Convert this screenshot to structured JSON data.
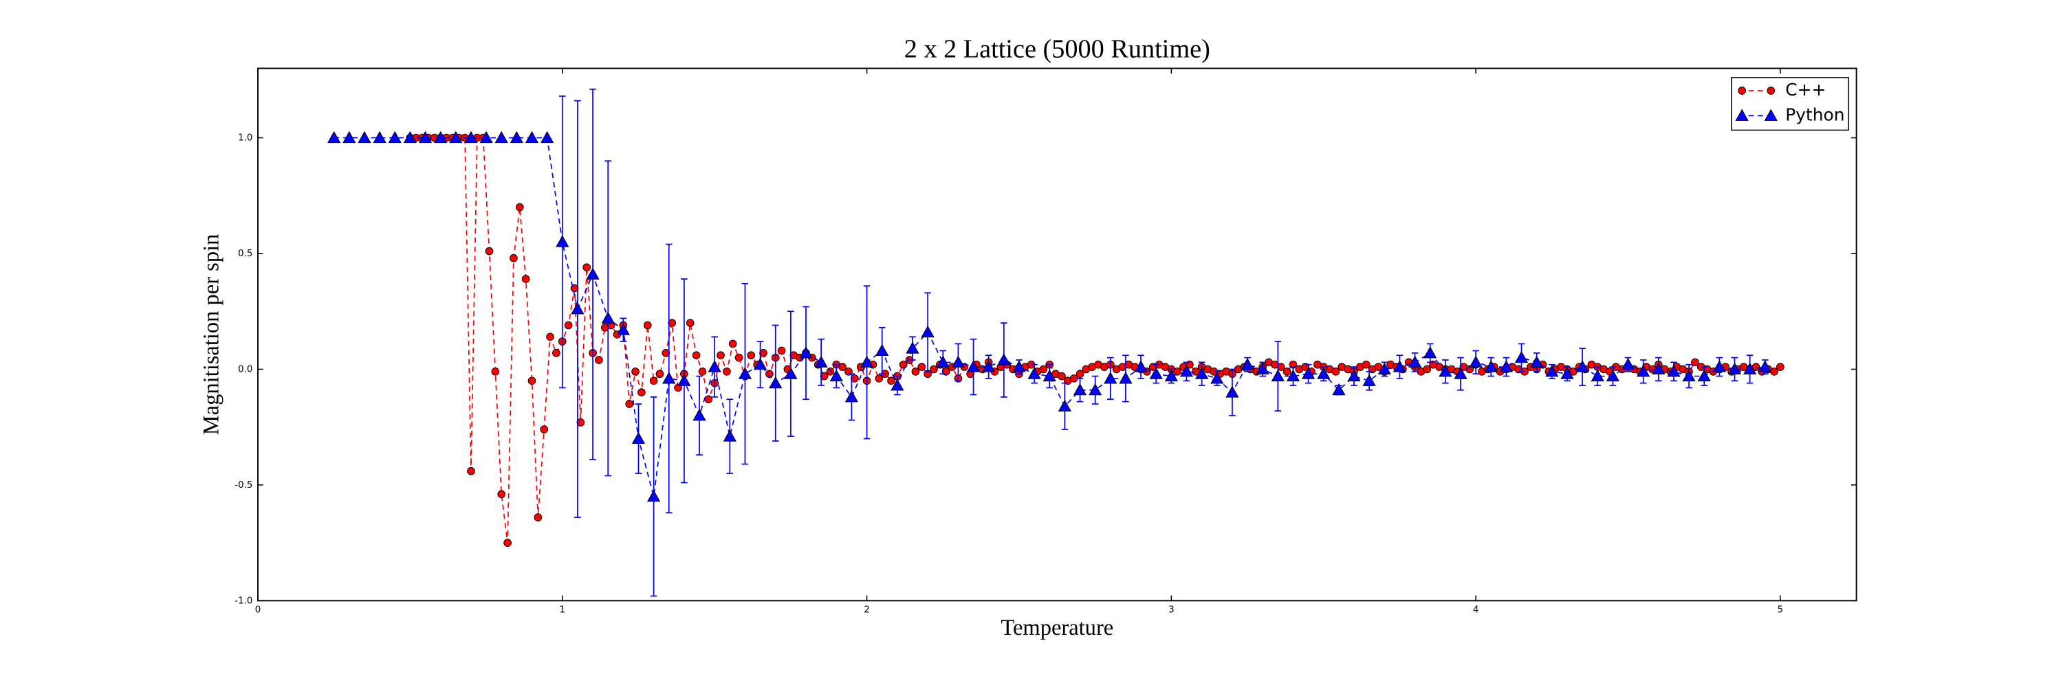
{
  "chart_data": {
    "type": "line",
    "title": "2 x 2 Lattice (5000 Runtime)",
    "x_label": "Temperature",
    "y_label": "Magnitisation per spin",
    "xlim": [
      0,
      5.25
    ],
    "ylim": [
      -1,
      1.3
    ],
    "xticks": [
      0,
      1,
      2,
      3,
      4,
      5
    ],
    "yticks": [
      {
        "value": -1,
        "label": "-1.0"
      },
      -0.5,
      {
        "value": 0,
        "label": "0.0"
      },
      0.5,
      {
        "value": 1,
        "label": "1.0"
      }
    ],
    "legend": "upper right",
    "series": [
      {
        "name": "C++",
        "color": "#ff0000",
        "marker": "circle",
        "x": [
          0.5,
          0.52,
          0.54,
          0.56,
          0.58,
          0.6,
          0.62,
          0.64,
          0.66,
          0.68,
          0.7,
          0.72,
          0.74,
          0.76,
          0.78,
          0.8,
          0.82,
          0.84,
          0.86,
          0.88,
          0.9,
          0.92,
          0.94,
          0.96,
          0.98,
          1.0,
          1.02,
          1.04,
          1.06,
          1.08,
          1.1,
          1.12,
          1.14,
          1.16,
          1.18,
          1.2,
          1.22,
          1.24,
          1.26,
          1.28,
          1.3,
          1.32,
          1.34,
          1.36,
          1.38,
          1.4,
          1.42,
          1.44,
          1.46,
          1.48,
          1.5,
          1.52,
          1.54,
          1.56,
          1.58,
          1.6,
          1.62,
          1.64,
          1.66,
          1.68,
          1.7,
          1.72,
          1.74,
          1.76,
          1.78,
          1.8,
          1.82,
          1.84,
          1.86,
          1.88,
          1.9,
          1.92,
          1.94,
          1.96,
          1.98,
          2.0,
          2.02,
          2.04,
          2.06,
          2.08,
          2.1,
          2.12,
          2.14,
          2.16,
          2.18,
          2.2,
          2.22,
          2.24,
          2.26,
          2.28,
          2.3,
          2.32,
          2.34,
          2.36,
          2.38,
          2.4,
          2.42,
          2.44,
          2.46,
          2.48,
          2.5,
          2.52,
          2.54,
          2.56,
          2.58,
          2.6,
          2.62,
          2.64,
          2.66,
          2.68,
          2.7,
          2.72,
          2.74,
          2.76,
          2.78,
          2.8,
          2.82,
          2.84,
          2.86,
          2.88,
          2.9,
          2.92,
          2.94,
          2.96,
          2.98,
          3.0,
          3.02,
          3.04,
          3.06,
          3.08,
          3.1,
          3.12,
          3.14,
          3.16,
          3.18,
          3.2,
          3.22,
          3.24,
          3.26,
          3.28,
          3.3,
          3.32,
          3.34,
          3.36,
          3.38,
          3.4,
          3.42,
          3.44,
          3.46,
          3.48,
          3.5,
          3.52,
          3.54,
          3.56,
          3.58,
          3.6,
          3.62,
          3.64,
          3.66,
          3.68,
          3.7,
          3.72,
          3.74,
          3.76,
          3.78,
          3.8,
          3.82,
          3.84,
          3.86,
          3.88,
          3.9,
          3.92,
          3.94,
          3.96,
          3.98,
          4.0,
          4.02,
          4.04,
          4.06,
          4.08,
          4.1,
          4.12,
          4.14,
          4.16,
          4.18,
          4.2,
          4.22,
          4.24,
          4.26,
          4.28,
          4.3,
          4.32,
          4.34,
          4.36,
          4.38,
          4.4,
          4.42,
          4.44,
          4.46,
          4.48,
          4.5,
          4.52,
          4.54,
          4.56,
          4.58,
          4.6,
          4.62,
          4.64,
          4.66,
          4.68,
          4.7,
          4.72,
          4.74,
          4.76,
          4.78,
          4.8,
          4.82,
          4.84,
          4.86,
          4.88,
          4.9,
          4.92,
          4.94,
          4.96,
          4.98,
          5.0
        ],
        "values": [
          1,
          1,
          1,
          1,
          1,
          1,
          1,
          1,
          1,
          1,
          -0.44,
          1,
          1,
          0.51,
          -0.01,
          -0.54,
          -0.75,
          0.48,
          0.7,
          0.39,
          -0.05,
          -0.64,
          -0.26,
          0.14,
          0.07,
          0.12,
          0.19,
          0.35,
          -0.23,
          0.44,
          0.07,
          0.04,
          0.18,
          0.19,
          0.15,
          0.19,
          -0.15,
          -0.01,
          -0.1,
          0.19,
          -0.05,
          -0.02,
          0.07,
          0.2,
          -0.08,
          -0.02,
          0.2,
          0.06,
          -0.01,
          -0.13,
          -0.06,
          0.06,
          -0.01,
          0.11,
          0.05,
          -0.03,
          0.06,
          0.02,
          0.07,
          -0.02,
          0.05,
          0.08,
          0.0,
          0.06,
          0.05,
          0.07,
          0.05,
          0.02,
          -0.03,
          -0.01,
          0.02,
          0.01,
          -0.01,
          -0.04,
          0.01,
          -0.05,
          0.02,
          -0.04,
          -0.02,
          -0.05,
          -0.03,
          0.02,
          0.04,
          -0.01,
          0.01,
          -0.02,
          0.0,
          0.02,
          -0.01,
          0.01,
          -0.04,
          0.01,
          -0.02,
          0.02,
          0.0,
          0.03,
          -0.01,
          0.01,
          0.02,
          0.0,
          -0.02,
          0.01,
          0.02,
          -0.01,
          0.0,
          0.02,
          -0.02,
          -0.03,
          -0.05,
          -0.04,
          -0.02,
          0.0,
          0.01,
          0.02,
          0.01,
          0.02,
          0.0,
          0.01,
          0.02,
          0.01,
          0.0,
          -0.01,
          0.01,
          0.02,
          0.01,
          0.0,
          -0.01,
          0.01,
          0.02,
          -0.01,
          0.01,
          0.0,
          -0.01,
          -0.02,
          -0.01,
          -0.02,
          0.0,
          0.01,
          0.0,
          -0.01,
          0.01,
          0.03,
          0.02,
          0.01,
          -0.01,
          0.02,
          0.0,
          0.01,
          -0.01,
          0.02,
          0.01,
          0.0,
          -0.01,
          0.01,
          0.0,
          -0.01,
          0.01,
          0.02,
          0.0,
          0.01,
          -0.01,
          0.02,
          0.01,
          0.0,
          0.03,
          0.01,
          -0.01,
          0.0,
          0.02,
          0.01,
          0.0,
          0.0,
          -0.01,
          0.01,
          0.0,
          0.02,
          -0.01,
          0.0,
          0.01,
          -0.01,
          0.0,
          0.01,
          0.0,
          -0.01,
          0.01,
          0.0,
          0.02,
          -0.01,
          0.0,
          0.01,
          0.0,
          -0.01,
          0.01,
          0.0,
          0.02,
          0.01,
          0.0,
          -0.01,
          0.01,
          0.0,
          0.01,
          0.0,
          -0.01,
          0.01,
          0.0,
          0.02,
          0.0,
          -0.01,
          0.01,
          0.0,
          -0.01,
          0.03,
          0.01,
          0.0,
          -0.01,
          0.0,
          0.01,
          -0.01,
          0.0,
          0.01,
          0.0,
          0.01,
          -0.01,
          0.0,
          -0.01,
          0.01
        ]
      },
      {
        "name": "Python",
        "color": "#0000ff",
        "marker": "triangle",
        "x": [
          0.25,
          0.3,
          0.35,
          0.4,
          0.45,
          0.5,
          0.55,
          0.6,
          0.65,
          0.7,
          0.75,
          0.8,
          0.85,
          0.9,
          0.95,
          1.0,
          1.05,
          1.1,
          1.15,
          1.2,
          1.25,
          1.3,
          1.35,
          1.4,
          1.45,
          1.5,
          1.55,
          1.6,
          1.65,
          1.7,
          1.75,
          1.8,
          1.85,
          1.9,
          1.95,
          2.0,
          2.05,
          2.1,
          2.15,
          2.2,
          2.25,
          2.3,
          2.35,
          2.4,
          2.45,
          2.5,
          2.55,
          2.6,
          2.65,
          2.7,
          2.75,
          2.8,
          2.85,
          2.9,
          2.95,
          3.0,
          3.05,
          3.1,
          3.15,
          3.2,
          3.25,
          3.3,
          3.35,
          3.4,
          3.45,
          3.5,
          3.55,
          3.6,
          3.65,
          3.7,
          3.75,
          3.8,
          3.85,
          3.9,
          3.95,
          4.0,
          4.05,
          4.1,
          4.15,
          4.2,
          4.25,
          4.3,
          4.35,
          4.4,
          4.45,
          4.5,
          4.55,
          4.6,
          4.65,
          4.7,
          4.75,
          4.8,
          4.85,
          4.9,
          4.95
        ],
        "values": [
          1,
          1,
          1,
          1,
          1,
          1,
          1,
          1,
          1,
          1,
          1,
          1,
          1,
          1,
          1,
          0.55,
          0.26,
          0.41,
          0.22,
          0.17,
          -0.3,
          -0.55,
          -0.04,
          -0.05,
          -0.2,
          0.01,
          -0.29,
          -0.02,
          0.02,
          -0.06,
          -0.02,
          0.07,
          0.03,
          -0.03,
          -0.12,
          0.03,
          0.08,
          -0.07,
          0.09,
          0.16,
          0.03,
          0.03,
          0.01,
          0.01,
          0.04,
          0.01,
          -0.02,
          -0.03,
          -0.16,
          -0.09,
          -0.09,
          -0.04,
          -0.04,
          0.01,
          -0.02,
          -0.03,
          -0.01,
          -0.02,
          -0.04,
          -0.1,
          0.02,
          0.0,
          -0.03,
          -0.03,
          -0.02,
          -0.02,
          -0.09,
          -0.03,
          -0.05,
          0.0,
          0.01,
          0.03,
          0.07,
          -0.01,
          -0.02,
          0.03,
          0.01,
          0.01,
          0.05,
          0.03,
          -0.01,
          -0.02,
          0.01,
          -0.03,
          -0.03,
          0.02,
          -0.01,
          0.0,
          -0.01,
          -0.03,
          -0.03,
          0.01,
          0.0,
          0.0,
          0.01
        ],
        "errors": [
          0,
          0,
          0,
          0,
          0,
          0,
          0,
          0,
          0,
          0,
          0,
          0,
          0,
          0,
          0,
          0.63,
          0.9,
          0.8,
          0.68,
          0.05,
          0.15,
          0.43,
          0.58,
          0.44,
          0.17,
          0.13,
          0.16,
          0.39,
          0.1,
          0.25,
          0.27,
          0.2,
          0.1,
          0.05,
          0.1,
          0.33,
          0.1,
          0.04,
          0.05,
          0.17,
          0.05,
          0.08,
          0.12,
          0.05,
          0.16,
          0.03,
          0.04,
          0.05,
          0.1,
          0.05,
          0.06,
          0.09,
          0.1,
          0.05,
          0.04,
          0.03,
          0.04,
          0.05,
          0.03,
          0.1,
          0.03,
          0.03,
          0.15,
          0.04,
          0.04,
          0.03,
          0.02,
          0.04,
          0.04,
          0.03,
          0.05,
          0.04,
          0.04,
          0.05,
          0.07,
          0.05,
          0.04,
          0.04,
          0.06,
          0.04,
          0.03,
          0.03,
          0.08,
          0.04,
          0.04,
          0.03,
          0.05,
          0.05,
          0.04,
          0.05,
          0.04,
          0.04,
          0.05,
          0.06,
          0.03
        ]
      }
    ]
  }
}
